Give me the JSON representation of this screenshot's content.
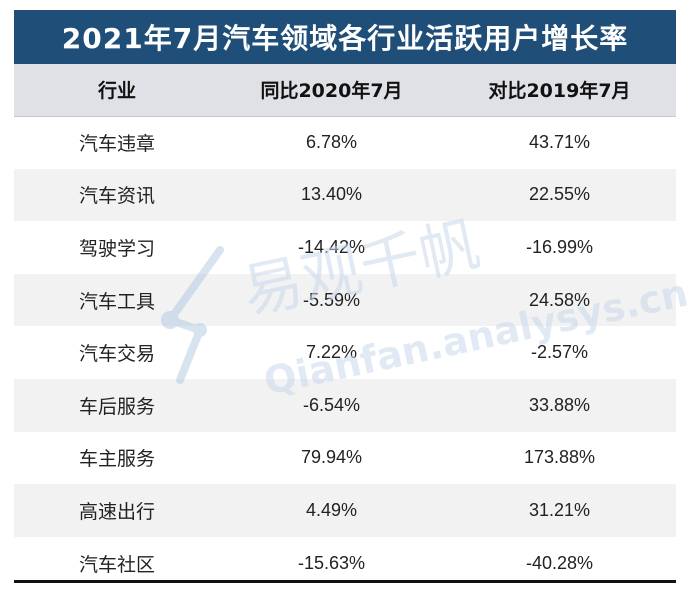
{
  "title": "2021年7月汽车领域各行业活跃用户增长率",
  "headers": [
    "行业",
    "同比2020年7月",
    "对比2019年7月"
  ],
  "rows": [
    {
      "industry": "汽车违章",
      "yoy": "6.78%",
      "vs2019": "43.71%"
    },
    {
      "industry": "汽车资讯",
      "yoy": "13.40%",
      "vs2019": "22.55%"
    },
    {
      "industry": "驾驶学习",
      "yoy": "-14.42%",
      "vs2019": "-16.99%"
    },
    {
      "industry": "汽车工具",
      "yoy": "-5.59%",
      "vs2019": "24.58%"
    },
    {
      "industry": "汽车交易",
      "yoy": "7.22%",
      "vs2019": "-2.57%"
    },
    {
      "industry": "车后服务",
      "yoy": "-6.54%",
      "vs2019": "33.88%"
    },
    {
      "industry": "车主服务",
      "yoy": "79.94%",
      "vs2019": "173.88%"
    },
    {
      "industry": "高速出行",
      "yoy": "4.49%",
      "vs2019": "31.21%"
    },
    {
      "industry": "汽车社区",
      "yoy": "-15.63%",
      "vs2019": "-40.28%"
    }
  ],
  "watermark": {
    "main": "易观千帆",
    "sub": "Qianfan.analysys.cn"
  },
  "colors": {
    "title_bg": "#1f4e79",
    "header_bg": "#dfe1e6",
    "stripe": "#f2f2f2",
    "watermark": "#c9d9ec"
  }
}
